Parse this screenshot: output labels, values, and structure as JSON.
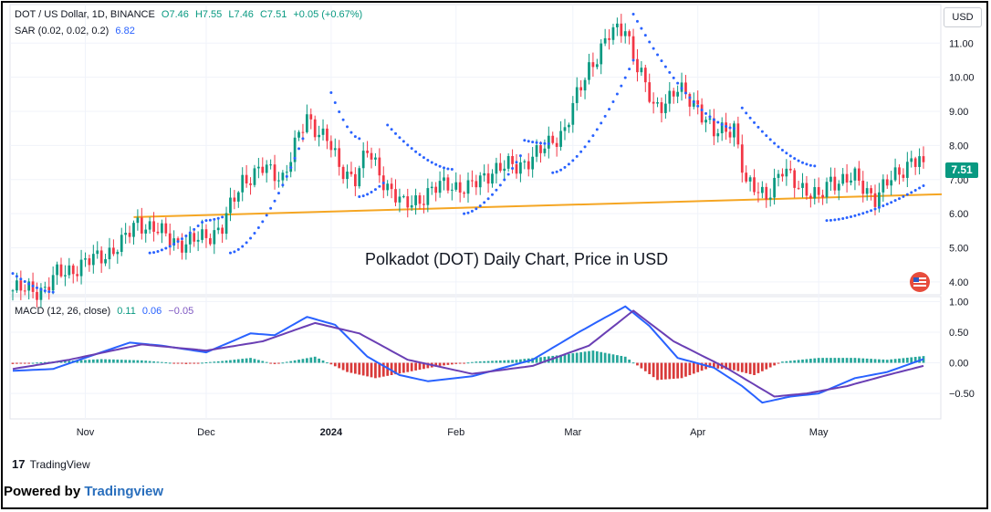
{
  "header": {
    "symbol": "DOT / US Dollar, 1D, BINANCE",
    "open": "O7.46",
    "high": "H7.55",
    "low": "L7.46",
    "close": "C7.51",
    "change": "+0.05 (+0.67%)",
    "sar_label": "SAR (0.02, 0.02, 0.2)",
    "sar_value": "6.82",
    "macd_label": "MACD (12, 26, close)",
    "macd_hist": "0.11",
    "macd_line": "0.06",
    "macd_signal": "−0.05"
  },
  "currency_button": "USD",
  "last_price_tag": "7.51",
  "chart_title": "Polkadot (DOT) Daily Chart, Price in USD",
  "brand_logo": "17",
  "brand_text": "TradingView",
  "powered_prefix": "Powered by ",
  "powered_brand": "Tradingview",
  "colors": {
    "up": "#089981",
    "down": "#f23645",
    "sar": "#2962ff",
    "trendline": "#f5a623",
    "macd_line": "#2962ff",
    "signal_line": "#6a3fb4",
    "hist_up": "#26a69a",
    "hist_down": "#d93a3a"
  },
  "chart_data": [
    {
      "type": "candlestick",
      "x_dates": [
        "2023-10-14",
        "2024-05-27"
      ],
      "x_tick_labels": [
        "Nov",
        "Dec",
        "2024",
        "Feb",
        "Mar",
        "Apr",
        "May"
      ],
      "x_tick_dates": [
        "2023-11-01",
        "2023-12-01",
        "2024-01-01",
        "2024-02-01",
        "2024-03-01",
        "2024-04-01",
        "2024-05-01"
      ],
      "y_tick_labels": [
        "4.00",
        "5.00",
        "6.00",
        "7.00",
        "8.00",
        "9.00",
        "10.00",
        "11.00"
      ],
      "ylim": [
        3.65,
        12.05
      ],
      "close_path": [
        [
          "2023-10-14",
          3.75
        ],
        [
          "2023-10-22",
          3.8
        ],
        [
          "2023-10-25",
          4.2
        ],
        [
          "2023-11-04",
          4.7
        ],
        [
          "2023-11-10",
          5.1
        ],
        [
          "2023-11-14",
          5.8
        ],
        [
          "2023-11-20",
          5.4
        ],
        [
          "2023-11-26",
          5.1
        ],
        [
          "2023-11-30",
          5.3
        ],
        [
          "2023-12-05",
          5.6
        ],
        [
          "2023-12-10",
          7.0
        ],
        [
          "2023-12-15",
          7.3
        ],
        [
          "2023-12-20",
          7.1
        ],
        [
          "2023-12-26",
          8.8
        ],
        [
          "2023-12-31",
          8.2
        ],
        [
          "2024-01-03",
          7.3
        ],
        [
          "2024-01-07",
          7.1
        ],
        [
          "2024-01-10",
          7.8
        ],
        [
          "2024-01-14",
          7.0
        ],
        [
          "2024-01-19",
          6.2
        ],
        [
          "2024-01-25",
          6.6
        ],
        [
          "2024-01-30",
          6.9
        ],
        [
          "2024-02-04",
          6.7
        ],
        [
          "2024-02-10",
          7.3
        ],
        [
          "2024-02-16",
          7.4
        ],
        [
          "2024-02-22",
          7.8
        ],
        [
          "2024-02-28",
          8.5
        ],
        [
          "2024-03-05",
          10.3
        ],
        [
          "2024-03-10",
          11.2
        ],
        [
          "2024-03-14",
          11.5
        ],
        [
          "2024-03-17",
          10.3
        ],
        [
          "2024-03-21",
          9.1
        ],
        [
          "2024-03-27",
          9.6
        ],
        [
          "2024-04-01",
          9.2
        ],
        [
          "2024-04-05",
          8.3
        ],
        [
          "2024-04-10",
          8.6
        ],
        [
          "2024-04-13",
          6.8
        ],
        [
          "2024-04-18",
          6.6
        ],
        [
          "2024-04-22",
          7.2
        ],
        [
          "2024-04-26",
          6.9
        ],
        [
          "2024-05-01",
          6.4
        ],
        [
          "2024-05-04",
          7.0
        ],
        [
          "2024-05-10",
          7.0
        ],
        [
          "2024-05-15",
          6.5
        ],
        [
          "2024-05-20",
          7.1
        ],
        [
          "2024-05-24",
          7.6
        ],
        [
          "2024-05-27",
          7.51
        ]
      ],
      "sar_segments": [
        [
          [
            "2023-10-14",
            4.25
          ],
          [
            "2023-10-24",
            3.7
          ]
        ],
        [
          [
            "2023-11-17",
            4.85
          ],
          [
            "2023-11-30",
            5.75
          ]
        ],
        [
          [
            "2023-12-01",
            5.8
          ],
          [
            "2023-12-05",
            5.9
          ]
        ],
        [
          [
            "2023-12-07",
            4.85
          ],
          [
            "2023-12-25",
            8.2
          ]
        ],
        [
          [
            "2024-01-01",
            9.55
          ],
          [
            "2024-01-08",
            8.2
          ]
        ],
        [
          [
            "2024-01-08",
            6.5
          ],
          [
            "2024-01-14",
            6.9
          ]
        ],
        [
          [
            "2024-01-15",
            8.6
          ],
          [
            "2024-01-31",
            7.3
          ]
        ],
        [
          [
            "2024-02-03",
            6.0
          ],
          [
            "2024-02-17",
            7.7
          ]
        ],
        [
          [
            "2024-02-18",
            8.15
          ],
          [
            "2024-02-24",
            8.05
          ]
        ],
        [
          [
            "2024-02-25",
            7.2
          ],
          [
            "2024-03-16",
            10.5
          ]
        ],
        [
          [
            "2024-03-16",
            11.85
          ],
          [
            "2024-04-10",
            8.5
          ]
        ],
        [
          [
            "2024-04-12",
            9.1
          ],
          [
            "2024-04-30",
            7.4
          ]
        ],
        [
          [
            "2024-05-03",
            5.8
          ],
          [
            "2024-05-27",
            6.82
          ]
        ]
      ],
      "trendline": [
        [
          "2023-11-13",
          5.9
        ],
        [
          "2024-05-27",
          6.55
        ]
      ],
      "last_close": 7.51
    },
    {
      "type": "line",
      "title": "MACD (12, 26, close)",
      "y_tick_labels": [
        "1.00",
        "0.50",
        "0.00",
        "−0.50"
      ],
      "ylim": [
        -0.9,
        1.05
      ],
      "series": [
        {
          "name": "MACD",
          "points": [
            [
              "2023-10-14",
              -0.13
            ],
            [
              "2023-10-24",
              -0.1
            ],
            [
              "2023-11-12",
              0.33
            ],
            [
              "2023-11-20",
              0.28
            ],
            [
              "2023-12-01",
              0.17
            ],
            [
              "2023-12-12",
              0.48
            ],
            [
              "2023-12-18",
              0.45
            ],
            [
              "2023-12-26",
              0.75
            ],
            [
              "2024-01-02",
              0.62
            ],
            [
              "2024-01-10",
              0.1
            ],
            [
              "2024-01-18",
              -0.2
            ],
            [
              "2024-01-25",
              -0.3
            ],
            [
              "2024-02-05",
              -0.22
            ],
            [
              "2024-02-20",
              0.05
            ],
            [
              "2024-03-03",
              0.52
            ],
            [
              "2024-03-14",
              0.92
            ],
            [
              "2024-03-20",
              0.6
            ],
            [
              "2024-03-27",
              0.08
            ],
            [
              "2024-04-05",
              -0.08
            ],
            [
              "2024-04-12",
              -0.38
            ],
            [
              "2024-04-17",
              -0.65
            ],
            [
              "2024-04-24",
              -0.55
            ],
            [
              "2024-05-01",
              -0.5
            ],
            [
              "2024-05-10",
              -0.25
            ],
            [
              "2024-05-18",
              -0.15
            ],
            [
              "2024-05-27",
              0.06
            ]
          ]
        },
        {
          "name": "Signal",
          "points": [
            [
              "2023-10-14",
              -0.1
            ],
            [
              "2023-10-28",
              0.05
            ],
            [
              "2023-11-15",
              0.3
            ],
            [
              "2023-12-01",
              0.2
            ],
            [
              "2023-12-15",
              0.35
            ],
            [
              "2023-12-28",
              0.65
            ],
            [
              "2024-01-08",
              0.48
            ],
            [
              "2024-01-20",
              0.05
            ],
            [
              "2024-02-05",
              -0.18
            ],
            [
              "2024-02-20",
              -0.05
            ],
            [
              "2024-03-05",
              0.28
            ],
            [
              "2024-03-16",
              0.85
            ],
            [
              "2024-03-26",
              0.35
            ],
            [
              "2024-04-08",
              -0.08
            ],
            [
              "2024-04-20",
              -0.55
            ],
            [
              "2024-04-28",
              -0.5
            ],
            [
              "2024-05-08",
              -0.38
            ],
            [
              "2024-05-18",
              -0.2
            ],
            [
              "2024-05-27",
              -0.05
            ]
          ]
        }
      ],
      "histogram": [
        [
          "2023-10-14",
          -0.02
        ],
        [
          "2023-10-24",
          0.02
        ],
        [
          "2023-11-05",
          0.06
        ],
        [
          "2023-11-15",
          0.04
        ],
        [
          "2023-11-26",
          -0.02
        ],
        [
          "2023-12-05",
          0.03
        ],
        [
          "2023-12-12",
          0.08
        ],
        [
          "2023-12-18",
          -0.02
        ],
        [
          "2023-12-28",
          0.1
        ],
        [
          "2024-01-05",
          -0.15
        ],
        [
          "2024-01-12",
          -0.25
        ],
        [
          "2024-01-20",
          -0.15
        ],
        [
          "2024-01-28",
          -0.05
        ],
        [
          "2024-02-06",
          0.02
        ],
        [
          "2024-02-16",
          0.05
        ],
        [
          "2024-02-26",
          0.12
        ],
        [
          "2024-03-06",
          0.2
        ],
        [
          "2024-03-14",
          0.1
        ],
        [
          "2024-03-22",
          -0.28
        ],
        [
          "2024-03-28",
          -0.25
        ],
        [
          "2024-04-04",
          -0.08
        ],
        [
          "2024-04-10",
          -0.12
        ],
        [
          "2024-04-15",
          -0.2
        ],
        [
          "2024-04-22",
          0.02
        ],
        [
          "2024-05-01",
          0.08
        ],
        [
          "2024-05-10",
          0.08
        ],
        [
          "2024-05-18",
          0.05
        ],
        [
          "2024-05-27",
          0.11
        ]
      ],
      "last_values": {
        "histogram": 0.11,
        "macd": 0.06,
        "signal": -0.05
      }
    }
  ]
}
